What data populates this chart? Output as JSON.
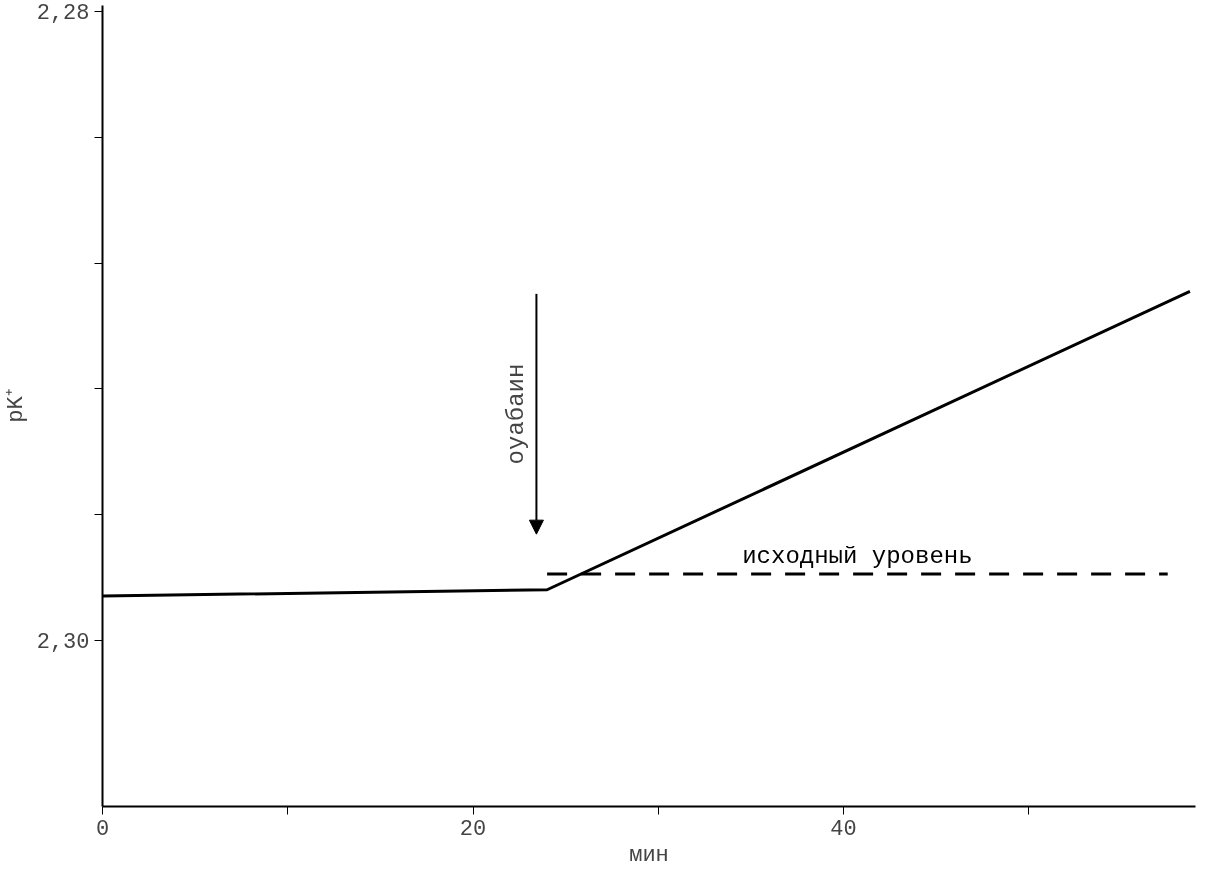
{
  "chart_data": {
    "type": "line",
    "xlabel": "мин",
    "ylabel": "pK⁺",
    "series": [
      {
        "color": "#000000",
        "x": [
          0,
          24,
          58.7
        ],
        "values": [
          2.2986,
          2.2984,
          2.2889
        ],
        "line_style": "solid"
      },
      {
        "name": "исходный уровень",
        "color": "#000000",
        "x": [
          24,
          57.5
        ],
        "values": [
          2.2979,
          2.2979
        ],
        "line_style": "dashed"
      }
    ],
    "annotations": [
      "оуабаин"
    ],
    "xlim": [
      0,
      59
    ],
    "ylim": [
      2.3053,
      2.2798
    ],
    "xticks": [
      0,
      {
        "value": 10,
        "label": null
      },
      20,
      {
        "value": 30,
        "label": null
      },
      40,
      {
        "value": 50,
        "label": null
      }
    ],
    "yticks": [
      {
        "value": 2.28,
        "label": "2,28"
      },
      {
        "value": 2.284,
        "label": null
      },
      {
        "value": 2.288,
        "label": null
      },
      {
        "value": 2.292,
        "label": null
      },
      {
        "value": 2.296,
        "label": null
      },
      {
        "value": 2.3,
        "label": "2,30"
      }
    ],
    "grid": false
  }
}
